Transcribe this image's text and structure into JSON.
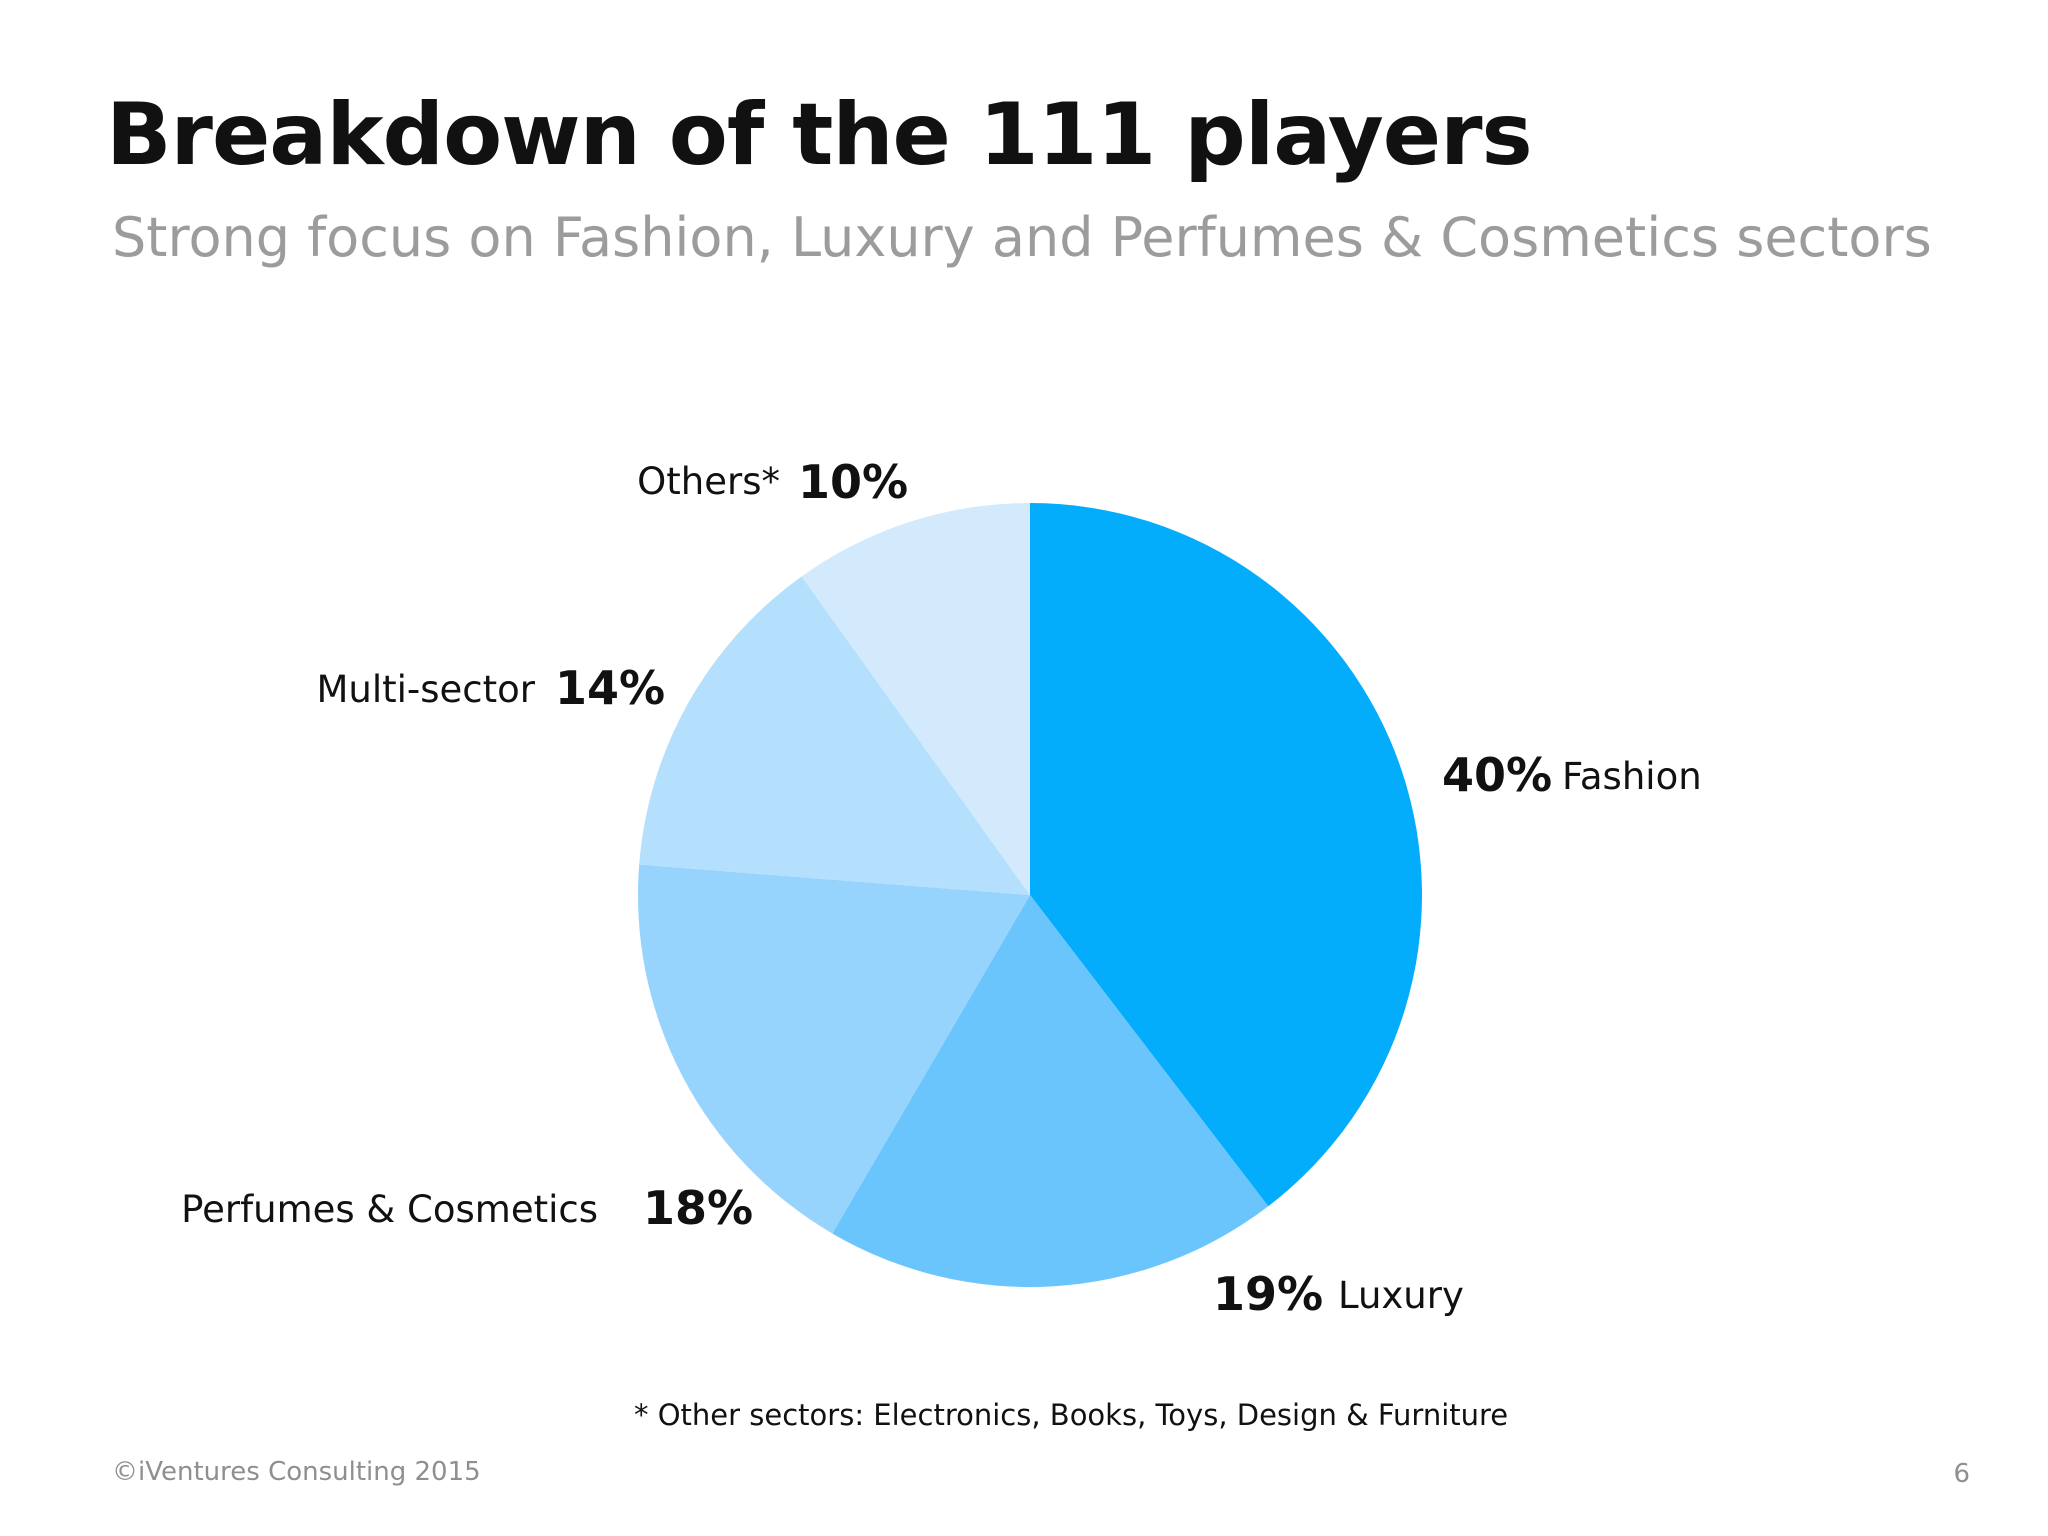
{
  "slide": {
    "title": "Breakdown of the 111 players",
    "subtitle": "Strong focus on Fashion, Luxury and Perfumes & Cosmetics sectors",
    "footnote": "* Other sectors: Electronics, Books, Toys, Design & Furniture",
    "copyright": "©iVentures Consulting 2015",
    "page_number": "6"
  },
  "chart_data": {
    "type": "pie",
    "title": "",
    "slices": [
      {
        "label": "Fashion",
        "value": 40,
        "value_label": "40%",
        "color": "#03adfc"
      },
      {
        "label": "Luxury",
        "value": 19,
        "value_label": "19%",
        "color": "#6bc5fd"
      },
      {
        "label": "Perfumes & Cosmetics",
        "value": 18,
        "value_label": "18%",
        "color": "#97d4fd"
      },
      {
        "label": "Multi-sector",
        "value": 14,
        "value_label": "14%",
        "color": "#b4e0fd"
      },
      {
        "label": "Others*",
        "value": 10,
        "value_label": "10%",
        "color": "#d3eafd"
      }
    ],
    "start": "12 o'clock",
    "direction": "clockwise"
  }
}
